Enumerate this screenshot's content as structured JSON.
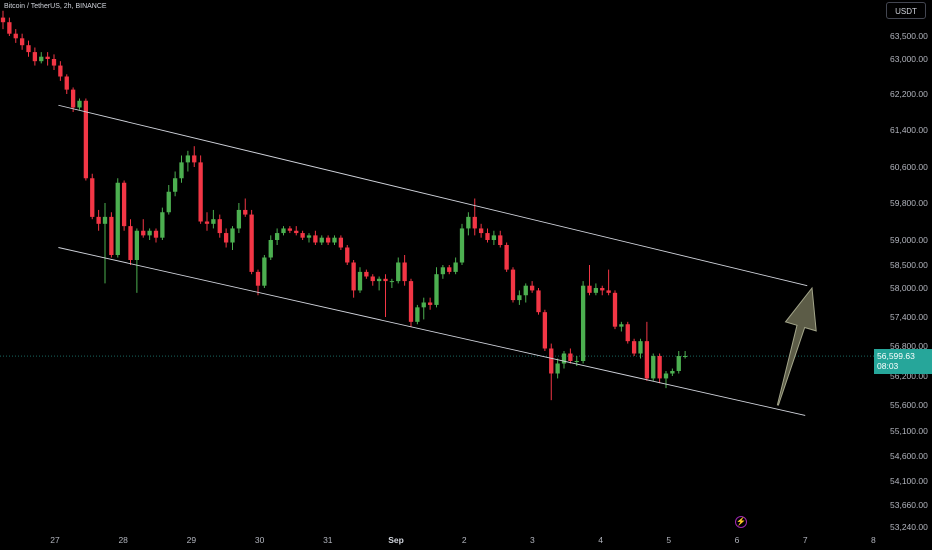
{
  "header": {
    "title": "Bitcoin / TetherUS, 2h, BINANCE"
  },
  "currency_button": {
    "label": "USDT"
  },
  "price_tag": {
    "price": "56,599.63",
    "countdown": "08:03"
  },
  "colors": {
    "up": "#4caf50",
    "down": "#f23645",
    "channel": "#d1d4dc",
    "arrow_fill": "#5c5c47",
    "arrow_stroke": "#a3a58a",
    "background": "#000000"
  },
  "chart_data": {
    "type": "candlestick",
    "symbol": "Bitcoin / TetherUS",
    "interval": "2h",
    "exchange": "BINANCE",
    "y_ticks": [
      63500,
      63000,
      62200,
      61400,
      60600,
      59800,
      59000,
      58500,
      58000,
      57400,
      56800,
      56200,
      55600,
      55100,
      54600,
      54100,
      53660,
      53240
    ],
    "y_tick_labels": [
      "63,500.00",
      "63,000.00",
      "62,200.00",
      "61,400.00",
      "60,600.00",
      "59,800.00",
      "59,000.00",
      "58,500.00",
      "58,000.00",
      "57,400.00",
      "56,800.00",
      "56,200.00",
      "55,600.00",
      "55,100.00",
      "54,600.00",
      "54,100.00",
      "53,660.00",
      "53,240.00"
    ],
    "x_ticks": [
      "27",
      "28",
      "29",
      "30",
      "31",
      "Sep",
      "2",
      "3",
      "4",
      "5",
      "6",
      "7",
      "8"
    ],
    "x_tick_days": [
      27,
      28,
      29,
      30,
      31,
      32,
      33,
      34,
      35,
      36,
      37,
      38,
      39
    ],
    "x_bold": [
      "Sep"
    ],
    "last_price": 56599.63,
    "candles": [
      {
        "o": 63900,
        "h": 64050,
        "l": 63650,
        "c": 63800
      },
      {
        "o": 63800,
        "h": 63900,
        "l": 63500,
        "c": 63550
      },
      {
        "o": 63550,
        "h": 63650,
        "l": 63350,
        "c": 63450
      },
      {
        "o": 63450,
        "h": 63550,
        "l": 63200,
        "c": 63300
      },
      {
        "o": 63300,
        "h": 63400,
        "l": 63050,
        "c": 63150
      },
      {
        "o": 63150,
        "h": 63250,
        "l": 62850,
        "c": 62950
      },
      {
        "o": 62950,
        "h": 63150,
        "l": 62900,
        "c": 63050
      },
      {
        "o": 63050,
        "h": 63150,
        "l": 62850,
        "c": 63000
      },
      {
        "o": 63000,
        "h": 63100,
        "l": 62750,
        "c": 62850
      },
      {
        "o": 62850,
        "h": 62950,
        "l": 62500,
        "c": 62600
      },
      {
        "o": 62600,
        "h": 62650,
        "l": 62200,
        "c": 62300
      },
      {
        "o": 62300,
        "h": 62350,
        "l": 61800,
        "c": 61900
      },
      {
        "o": 61900,
        "h": 62100,
        "l": 61850,
        "c": 62050
      },
      {
        "o": 62050,
        "h": 62100,
        "l": 60300,
        "c": 60350
      },
      {
        "o": 60350,
        "h": 60450,
        "l": 59450,
        "c": 59500
      },
      {
        "o": 59500,
        "h": 59650,
        "l": 59200,
        "c": 59350
      },
      {
        "o": 59350,
        "h": 59800,
        "l": 58100,
        "c": 59500
      },
      {
        "o": 59500,
        "h": 59600,
        "l": 58650,
        "c": 58700
      },
      {
        "o": 58700,
        "h": 60350,
        "l": 58650,
        "c": 60250
      },
      {
        "o": 60250,
        "h": 60300,
        "l": 59200,
        "c": 59300
      },
      {
        "o": 59300,
        "h": 59450,
        "l": 58500,
        "c": 58600
      },
      {
        "o": 58600,
        "h": 59250,
        "l": 57900,
        "c": 59200
      },
      {
        "o": 59200,
        "h": 59450,
        "l": 59050,
        "c": 59100
      },
      {
        "o": 59100,
        "h": 59250,
        "l": 59000,
        "c": 59200
      },
      {
        "o": 59200,
        "h": 59250,
        "l": 58950,
        "c": 59050
      },
      {
        "o": 59050,
        "h": 59700,
        "l": 59000,
        "c": 59600
      },
      {
        "o": 59600,
        "h": 60200,
        "l": 59550,
        "c": 60050
      },
      {
        "o": 60050,
        "h": 60500,
        "l": 59950,
        "c": 60350
      },
      {
        "o": 60350,
        "h": 60850,
        "l": 60250,
        "c": 60700
      },
      {
        "o": 60700,
        "h": 60950,
        "l": 60500,
        "c": 60850
      },
      {
        "o": 60850,
        "h": 61050,
        "l": 60600,
        "c": 60700
      },
      {
        "o": 60700,
        "h": 60850,
        "l": 59350,
        "c": 59400
      },
      {
        "o": 59400,
        "h": 59600,
        "l": 59200,
        "c": 59350
      },
      {
        "o": 59350,
        "h": 59650,
        "l": 59250,
        "c": 59450
      },
      {
        "o": 59450,
        "h": 59550,
        "l": 59050,
        "c": 59150
      },
      {
        "o": 59150,
        "h": 59250,
        "l": 58850,
        "c": 58950
      },
      {
        "o": 58950,
        "h": 59300,
        "l": 58800,
        "c": 59250
      },
      {
        "o": 59250,
        "h": 59800,
        "l": 59150,
        "c": 59650
      },
      {
        "o": 59650,
        "h": 59900,
        "l": 59500,
        "c": 59550
      },
      {
        "o": 59550,
        "h": 59650,
        "l": 58300,
        "c": 58350
      },
      {
        "o": 58350,
        "h": 58400,
        "l": 57850,
        "c": 58050
      },
      {
        "o": 58050,
        "h": 58700,
        "l": 58000,
        "c": 58650
      },
      {
        "o": 58650,
        "h": 59100,
        "l": 58600,
        "c": 59000
      },
      {
        "o": 59000,
        "h": 59250,
        "l": 58900,
        "c": 59150
      },
      {
        "o": 59150,
        "h": 59300,
        "l": 59100,
        "c": 59250
      },
      {
        "o": 59250,
        "h": 59300,
        "l": 59150,
        "c": 59200
      },
      {
        "o": 59200,
        "h": 59300,
        "l": 59100,
        "c": 59150
      },
      {
        "o": 59150,
        "h": 59200,
        "l": 59000,
        "c": 59050
      },
      {
        "o": 59050,
        "h": 59150,
        "l": 58950,
        "c": 59100
      },
      {
        "o": 59100,
        "h": 59200,
        "l": 58900,
        "c": 58950
      },
      {
        "o": 58950,
        "h": 59100,
        "l": 58900,
        "c": 59050
      },
      {
        "o": 59050,
        "h": 59100,
        "l": 58900,
        "c": 58950
      },
      {
        "o": 58950,
        "h": 59100,
        "l": 58900,
        "c": 59050
      },
      {
        "o": 59050,
        "h": 59100,
        "l": 58800,
        "c": 58850
      },
      {
        "o": 58850,
        "h": 58900,
        "l": 58500,
        "c": 58550
      },
      {
        "o": 58550,
        "h": 58600,
        "l": 57800,
        "c": 57950
      },
      {
        "o": 57950,
        "h": 58450,
        "l": 57900,
        "c": 58350
      },
      {
        "o": 58350,
        "h": 58400,
        "l": 58200,
        "c": 58250
      },
      {
        "o": 58250,
        "h": 58300,
        "l": 58050,
        "c": 58150
      },
      {
        "o": 58150,
        "h": 58250,
        "l": 57950,
        "c": 58200
      },
      {
        "o": 58200,
        "h": 58300,
        "l": 57400,
        "c": 58150
      },
      {
        "o": 58150,
        "h": 58200,
        "l": 58000,
        "c": 58150
      },
      {
        "o": 58150,
        "h": 58650,
        "l": 58100,
        "c": 58550
      },
      {
        "o": 58550,
        "h": 58700,
        "l": 58050,
        "c": 58150
      },
      {
        "o": 58150,
        "h": 58200,
        "l": 57200,
        "c": 57300
      },
      {
        "o": 57300,
        "h": 57650,
        "l": 57250,
        "c": 57600
      },
      {
        "o": 57600,
        "h": 57800,
        "l": 57350,
        "c": 57700
      },
      {
        "o": 57700,
        "h": 57800,
        "l": 57550,
        "c": 57650
      },
      {
        "o": 57650,
        "h": 58450,
        "l": 57600,
        "c": 58300
      },
      {
        "o": 58300,
        "h": 58500,
        "l": 58200,
        "c": 58450
      },
      {
        "o": 58450,
        "h": 58500,
        "l": 58300,
        "c": 58350
      },
      {
        "o": 58350,
        "h": 58650,
        "l": 58300,
        "c": 58550
      },
      {
        "o": 58550,
        "h": 59350,
        "l": 58500,
        "c": 59250
      },
      {
        "o": 59250,
        "h": 59600,
        "l": 59100,
        "c": 59500
      },
      {
        "o": 59500,
        "h": 59900,
        "l": 59100,
        "c": 59250
      },
      {
        "o": 59250,
        "h": 59350,
        "l": 59050,
        "c": 59150
      },
      {
        "o": 59150,
        "h": 59250,
        "l": 58950,
        "c": 59000
      },
      {
        "o": 59000,
        "h": 59200,
        "l": 58900,
        "c": 59100
      },
      {
        "o": 59100,
        "h": 59200,
        "l": 58850,
        "c": 58900
      },
      {
        "o": 58900,
        "h": 58950,
        "l": 58350,
        "c": 58400
      },
      {
        "o": 58400,
        "h": 58450,
        "l": 57700,
        "c": 57750
      },
      {
        "o": 57750,
        "h": 57950,
        "l": 57650,
        "c": 57850
      },
      {
        "o": 57850,
        "h": 58100,
        "l": 57700,
        "c": 58050
      },
      {
        "o": 58050,
        "h": 58150,
        "l": 57900,
        "c": 57950
      },
      {
        "o": 57950,
        "h": 58000,
        "l": 57450,
        "c": 57500
      },
      {
        "o": 57500,
        "h": 57550,
        "l": 56700,
        "c": 56750
      },
      {
        "o": 56750,
        "h": 56850,
        "l": 55700,
        "c": 56250
      },
      {
        "o": 56250,
        "h": 56550,
        "l": 56150,
        "c": 56450
      },
      {
        "o": 56450,
        "h": 56700,
        "l": 56350,
        "c": 56650
      },
      {
        "o": 56650,
        "h": 56750,
        "l": 56450,
        "c": 56500
      },
      {
        "o": 56500,
        "h": 56600,
        "l": 56400,
        "c": 56500
      },
      {
        "o": 56500,
        "h": 58150,
        "l": 56450,
        "c": 58050
      },
      {
        "o": 58050,
        "h": 58500,
        "l": 57850,
        "c": 57900
      },
      {
        "o": 57900,
        "h": 58100,
        "l": 57850,
        "c": 58000
      },
      {
        "o": 58000,
        "h": 58050,
        "l": 57850,
        "c": 57950
      },
      {
        "o": 57950,
        "h": 58400,
        "l": 57850,
        "c": 57900
      },
      {
        "o": 57900,
        "h": 57950,
        "l": 57150,
        "c": 57200
      },
      {
        "o": 57200,
        "h": 57300,
        "l": 57100,
        "c": 57250
      },
      {
        "o": 57250,
        "h": 57300,
        "l": 56850,
        "c": 56900
      },
      {
        "o": 56900,
        "h": 56950,
        "l": 56600,
        "c": 56650
      },
      {
        "o": 56650,
        "h": 56950,
        "l": 56550,
        "c": 56900
      },
      {
        "o": 56900,
        "h": 57300,
        "l": 56100,
        "c": 56150
      },
      {
        "o": 56150,
        "h": 56650,
        "l": 56100,
        "c": 56600
      },
      {
        "o": 56600,
        "h": 56650,
        "l": 56050,
        "c": 56150
      },
      {
        "o": 56150,
        "h": 56300,
        "l": 55950,
        "c": 56250
      },
      {
        "o": 56250,
        "h": 56350,
        "l": 56200,
        "c": 56300
      },
      {
        "o": 56300,
        "h": 56700,
        "l": 56250,
        "c": 56600
      },
      {
        "o": 56600,
        "h": 56700,
        "l": 56550,
        "c": 56600
      }
    ],
    "channel_upper": [
      {
        "day": 27.05,
        "price": 61950
      },
      {
        "day": 38.03,
        "price": 58050
      }
    ],
    "channel_lower": [
      {
        "day": 27.05,
        "price": 58850
      },
      {
        "day": 38.0,
        "price": 55400
      }
    ],
    "arrow": {
      "from": {
        "day": 37.6,
        "price": 55600
      },
      "to": {
        "day": 38.1,
        "price": 58000
      }
    }
  }
}
